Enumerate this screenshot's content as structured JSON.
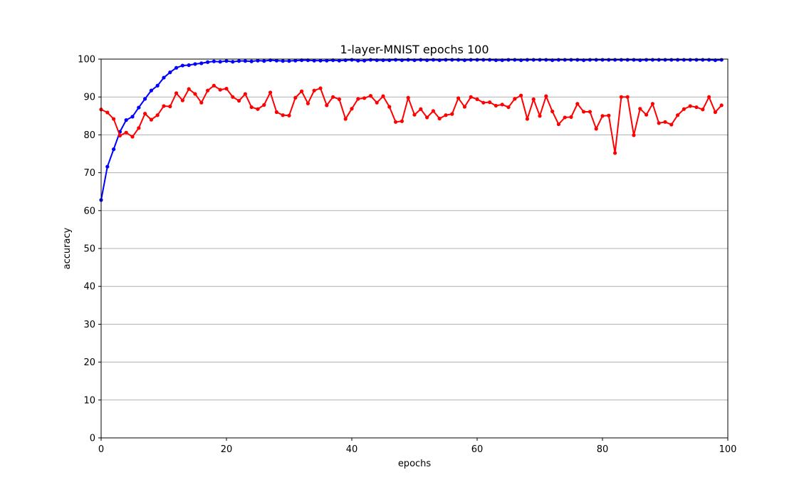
{
  "chart_data": {
    "type": "line",
    "title": "1-layer-MNIST epochs 100",
    "xlabel": "epochs",
    "ylabel": "accuracy",
    "xlim": [
      0,
      100
    ],
    "ylim": [
      0,
      100
    ],
    "xticks": [
      0,
      20,
      40,
      60,
      80,
      100
    ],
    "yticks": [
      0,
      10,
      20,
      30,
      40,
      50,
      60,
      70,
      80,
      90,
      100
    ],
    "grid": "y",
    "series": [
      {
        "color": "#0000ff",
        "values": [
          62.8,
          71.6,
          76.2,
          80.8,
          83.9,
          84.8,
          87.2,
          89.5,
          91.7,
          93.0,
          95.1,
          96.5,
          97.7,
          98.3,
          98.4,
          98.7,
          98.9,
          99.2,
          99.4,
          99.3,
          99.5,
          99.3,
          99.5,
          99.5,
          99.4,
          99.6,
          99.5,
          99.7,
          99.6,
          99.5,
          99.5,
          99.6,
          99.7,
          99.7,
          99.6,
          99.6,
          99.6,
          99.7,
          99.6,
          99.7,
          99.8,
          99.6,
          99.6,
          99.8,
          99.7,
          99.7,
          99.7,
          99.8,
          99.7,
          99.8,
          99.7,
          99.8,
          99.7,
          99.8,
          99.7,
          99.8,
          99.8,
          99.8,
          99.7,
          99.8,
          99.8,
          99.8,
          99.8,
          99.7,
          99.7,
          99.8,
          99.8,
          99.7,
          99.8,
          99.8,
          99.8,
          99.8,
          99.7,
          99.8,
          99.8,
          99.8,
          99.8,
          99.7,
          99.8,
          99.8,
          99.8,
          99.8,
          99.8,
          99.8,
          99.8,
          99.8,
          99.7,
          99.8,
          99.8,
          99.8,
          99.8,
          99.8,
          99.8,
          99.8,
          99.8,
          99.8,
          99.8,
          99.8,
          99.7,
          99.8
        ]
      },
      {
        "color": "#ff0000",
        "values": [
          86.7,
          85.9,
          84.2,
          79.8,
          80.6,
          79.5,
          81.8,
          85.6,
          84.0,
          85.2,
          87.6,
          87.5,
          91.0,
          89.1,
          92.1,
          90.8,
          88.5,
          91.7,
          93.0,
          91.9,
          92.2,
          90.0,
          89.0,
          90.8,
          87.3,
          86.8,
          87.9,
          91.2,
          86.0,
          85.2,
          85.1,
          89.8,
          91.5,
          88.3,
          91.7,
          92.3,
          87.8,
          90.0,
          89.4,
          84.2,
          86.9,
          89.5,
          89.7,
          90.3,
          88.5,
          90.2,
          87.4,
          83.4,
          83.6,
          89.8,
          85.3,
          86.8,
          84.6,
          86.3,
          84.3,
          85.2,
          85.5,
          89.7,
          87.4,
          90.0,
          89.4,
          88.5,
          88.6,
          87.7,
          88.0,
          87.3,
          89.5,
          90.4,
          84.2,
          89.4,
          85.0,
          90.2,
          86.2,
          82.8,
          84.6,
          84.7,
          88.2,
          86.1,
          86.1,
          81.6,
          85.0,
          85.1,
          75.2,
          90.0,
          90.0,
          79.9,
          86.9,
          85.3,
          88.2,
          83.1,
          83.4,
          82.7,
          85.2,
          86.8,
          87.6,
          87.3,
          86.7,
          90.0,
          86.0,
          87.8
        ]
      }
    ]
  }
}
